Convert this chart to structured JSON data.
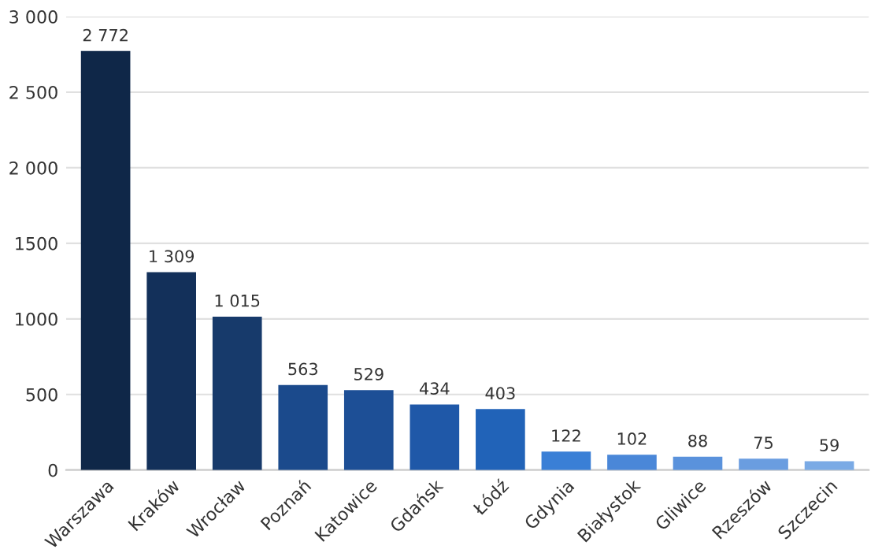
{
  "chart_data": {
    "type": "bar",
    "categories": [
      "Warszawa",
      "Kraków",
      "Wrocław",
      "Poznań",
      "Katowice",
      "Gdańsk",
      "Łódź",
      "Gdynia",
      "Białystok",
      "Gliwice",
      "Rzeszów",
      "Szczecin"
    ],
    "values": [
      2772,
      1309,
      1015,
      563,
      529,
      434,
      403,
      122,
      102,
      88,
      75,
      59
    ],
    "value_labels": [
      "2 772",
      "1 309",
      "1 015",
      "563",
      "529",
      "434",
      "403",
      "122",
      "102",
      "88",
      "75",
      "59"
    ],
    "colors": [
      "#0f2748",
      "#13305a",
      "#173a6b",
      "#1b4a8c",
      "#1d4f96",
      "#1f58a8",
      "#2163b8",
      "#3a7fd6",
      "#4a87d8",
      "#5a92dc",
      "#6a9de0",
      "#7aaae5"
    ],
    "ylim": [
      0,
      3000
    ],
    "yticks": [
      0,
      500,
      1000,
      1500,
      {
        "value": 2000,
        "label": "2 000"
      },
      {
        "value": 2500,
        "label": "2 500"
      },
      {
        "value": 3000,
        "label": "3 000"
      }
    ],
    "grid": "y"
  }
}
